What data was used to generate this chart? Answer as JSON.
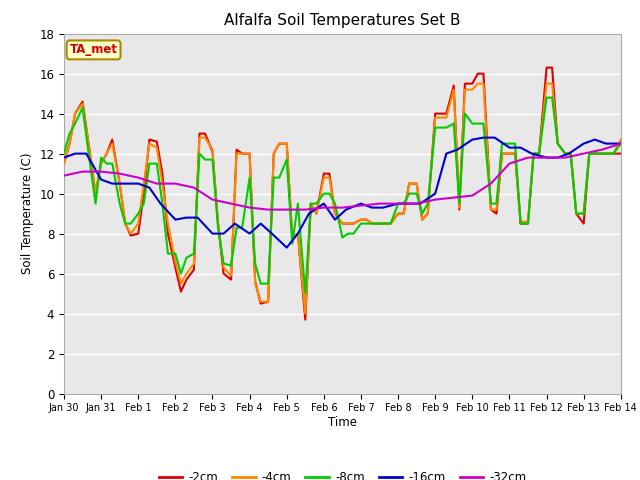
{
  "title": "Alfalfa Soil Temperatures Set B",
  "xlabel": "Time",
  "ylabel": "Soil Temperature (C)",
  "ylim": [
    0,
    18
  ],
  "xlim": [
    0,
    15
  ],
  "xtick_labels": [
    "Jan 30",
    "Jan 31",
    "Feb 1",
    "Feb 2",
    "Feb 3",
    "Feb 4",
    "Feb 5",
    "Feb 6",
    "Feb 7",
    "Feb 8",
    "Feb 9",
    "Feb 10",
    "Feb 11",
    "Feb 12",
    "Feb 13",
    "Feb 14"
  ],
  "xtick_positions": [
    0,
    1,
    2,
    3,
    4,
    5,
    6,
    7,
    8,
    9,
    10,
    11,
    12,
    13,
    14,
    15
  ],
  "fig_bg_color": "#ffffff",
  "plot_bg_color": "#e8e8e8",
  "annotation_text": "TA_met",
  "annotation_bg": "#ffffcc",
  "annotation_border": "#aa8800",
  "annotation_text_color": "#cc0000",
  "series": {
    "-2cm": {
      "color": "#dd0000",
      "x": [
        0,
        0.15,
        0.3,
        0.5,
        0.7,
        0.85,
        1.0,
        1.15,
        1.3,
        1.5,
        1.65,
        1.8,
        2.0,
        2.15,
        2.3,
        2.5,
        2.65,
        2.8,
        3.0,
        3.15,
        3.3,
        3.5,
        3.65,
        3.8,
        4.0,
        4.15,
        4.3,
        4.5,
        4.65,
        4.8,
        5.0,
        5.15,
        5.3,
        5.5,
        5.65,
        5.8,
        6.0,
        6.15,
        6.3,
        6.5,
        6.65,
        6.8,
        7.0,
        7.15,
        7.3,
        7.5,
        7.65,
        7.8,
        8.0,
        8.15,
        8.3,
        8.5,
        8.65,
        8.8,
        9.0,
        9.15,
        9.3,
        9.5,
        9.65,
        9.8,
        10.0,
        10.15,
        10.3,
        10.5,
        10.65,
        10.8,
        11.0,
        11.15,
        11.3,
        11.5,
        11.65,
        11.8,
        12.0,
        12.15,
        12.3,
        12.5,
        12.65,
        12.8,
        13.0,
        13.15,
        13.3,
        13.5,
        13.65,
        13.8,
        14.0,
        14.15,
        14.3,
        14.5,
        14.65,
        14.8,
        15.0
      ],
      "y": [
        11.5,
        12.5,
        14.0,
        14.6,
        12.0,
        10.0,
        11.5,
        12.0,
        12.7,
        10.5,
        8.5,
        7.9,
        8.0,
        10.0,
        12.7,
        12.6,
        11.0,
        8.0,
        6.3,
        5.1,
        5.7,
        6.2,
        13.0,
        13.0,
        12.1,
        8.5,
        6.0,
        5.7,
        12.2,
        12.0,
        12.0,
        5.6,
        4.5,
        4.6,
        12.0,
        12.5,
        12.5,
        7.8,
        8.0,
        3.7,
        9.5,
        9.0,
        11.0,
        11.0,
        9.0,
        8.5,
        8.5,
        8.5,
        8.7,
        8.7,
        8.5,
        8.5,
        8.5,
        8.5,
        9.0,
        9.0,
        10.5,
        10.5,
        8.7,
        9.0,
        14.0,
        14.0,
        14.0,
        15.4,
        9.2,
        15.5,
        15.5,
        16.0,
        16.0,
        9.2,
        9.0,
        12.0,
        12.0,
        12.0,
        8.5,
        8.5,
        12.0,
        12.0,
        16.3,
        16.3,
        12.5,
        12.0,
        12.0,
        9.0,
        8.5,
        12.0,
        12.0,
        12.0,
        12.0,
        12.0,
        12.0
      ]
    },
    "-4cm": {
      "color": "#ff8800",
      "x": [
        0,
        0.15,
        0.3,
        0.5,
        0.7,
        0.85,
        1.0,
        1.15,
        1.3,
        1.5,
        1.65,
        1.8,
        2.0,
        2.15,
        2.3,
        2.5,
        2.65,
        2.8,
        3.0,
        3.15,
        3.3,
        3.5,
        3.65,
        3.8,
        4.0,
        4.15,
        4.3,
        4.5,
        4.65,
        4.8,
        5.0,
        5.15,
        5.3,
        5.5,
        5.65,
        5.8,
        6.0,
        6.15,
        6.3,
        6.5,
        6.65,
        6.8,
        7.0,
        7.15,
        7.3,
        7.5,
        7.65,
        7.8,
        8.0,
        8.15,
        8.3,
        8.5,
        8.65,
        8.8,
        9.0,
        9.15,
        9.3,
        9.5,
        9.65,
        9.8,
        10.0,
        10.15,
        10.3,
        10.5,
        10.65,
        10.8,
        11.0,
        11.15,
        11.3,
        11.5,
        11.65,
        11.8,
        12.0,
        12.15,
        12.3,
        12.5,
        12.65,
        12.8,
        13.0,
        13.15,
        13.3,
        13.5,
        13.65,
        13.8,
        14.0,
        14.15,
        14.3,
        14.5,
        14.65,
        14.8,
        15.0
      ],
      "y": [
        11.5,
        12.5,
        14.0,
        14.5,
        12.0,
        10.0,
        11.5,
        12.0,
        12.5,
        10.5,
        8.5,
        8.0,
        8.5,
        10.5,
        12.5,
        12.3,
        10.5,
        8.5,
        6.6,
        5.5,
        6.0,
        6.5,
        12.8,
        12.8,
        12.2,
        8.5,
        6.3,
        5.9,
        12.0,
        12.0,
        12.0,
        5.5,
        4.6,
        4.6,
        12.0,
        12.5,
        12.5,
        7.8,
        8.0,
        4.0,
        9.5,
        9.0,
        10.8,
        10.8,
        9.0,
        8.5,
        8.5,
        8.5,
        8.7,
        8.7,
        8.5,
        8.5,
        8.5,
        8.5,
        9.0,
        9.0,
        10.5,
        10.5,
        8.7,
        9.0,
        13.8,
        13.8,
        13.8,
        15.2,
        9.3,
        15.2,
        15.2,
        15.5,
        15.5,
        9.2,
        9.2,
        12.0,
        12.0,
        12.0,
        8.6,
        8.6,
        12.0,
        12.0,
        15.5,
        15.5,
        12.5,
        12.0,
        12.0,
        9.0,
        9.0,
        12.0,
        12.0,
        12.0,
        12.0,
        12.0,
        12.7
      ]
    },
    "-8cm": {
      "color": "#00cc00",
      "x": [
        0,
        0.15,
        0.3,
        0.5,
        0.7,
        0.85,
        1.0,
        1.15,
        1.3,
        1.5,
        1.65,
        1.8,
        2.0,
        2.15,
        2.3,
        2.5,
        2.65,
        2.8,
        3.0,
        3.15,
        3.3,
        3.5,
        3.65,
        3.8,
        4.0,
        4.15,
        4.3,
        4.5,
        4.65,
        4.8,
        5.0,
        5.15,
        5.3,
        5.5,
        5.65,
        5.8,
        6.0,
        6.15,
        6.3,
        6.5,
        6.65,
        6.8,
        7.0,
        7.15,
        7.3,
        7.5,
        7.65,
        7.8,
        8.0,
        8.15,
        8.3,
        8.5,
        8.65,
        8.8,
        9.0,
        9.15,
        9.3,
        9.5,
        9.65,
        9.8,
        10.0,
        10.15,
        10.3,
        10.5,
        10.65,
        10.8,
        11.0,
        11.15,
        11.3,
        11.5,
        11.65,
        11.8,
        12.0,
        12.15,
        12.3,
        12.5,
        12.65,
        12.8,
        13.0,
        13.15,
        13.3,
        13.5,
        13.65,
        13.8,
        14.0,
        14.15,
        14.3,
        14.5,
        14.65,
        14.8,
        15.0
      ],
      "y": [
        12.0,
        13.0,
        13.5,
        14.3,
        11.5,
        9.5,
        11.8,
        11.5,
        11.5,
        9.5,
        8.5,
        8.5,
        9.0,
        9.5,
        11.5,
        11.5,
        9.5,
        7.0,
        7.0,
        6.0,
        6.8,
        7.0,
        12.0,
        11.7,
        11.7,
        8.3,
        6.5,
        6.4,
        8.3,
        8.3,
        10.8,
        6.5,
        5.5,
        5.5,
        10.8,
        10.8,
        11.7,
        7.5,
        9.5,
        5.0,
        9.5,
        9.5,
        10.0,
        10.0,
        9.5,
        7.8,
        8.0,
        8.0,
        8.5,
        8.5,
        8.5,
        8.5,
        8.5,
        8.5,
        9.5,
        9.5,
        10.0,
        10.0,
        9.0,
        9.5,
        13.3,
        13.3,
        13.3,
        13.5,
        9.5,
        14.0,
        13.5,
        13.5,
        13.5,
        9.5,
        9.5,
        12.5,
        12.5,
        12.5,
        8.5,
        8.5,
        12.0,
        12.0,
        14.8,
        14.8,
        12.5,
        12.0,
        12.0,
        9.0,
        9.0,
        12.0,
        12.0,
        12.0,
        12.0,
        12.0,
        12.5
      ]
    },
    "-16cm": {
      "color": "#0000cc",
      "x": [
        0,
        0.3,
        0.6,
        1.0,
        1.3,
        1.6,
        2.0,
        2.3,
        2.6,
        3.0,
        3.3,
        3.6,
        4.0,
        4.3,
        4.6,
        5.0,
        5.3,
        5.6,
        6.0,
        6.3,
        6.6,
        7.0,
        7.3,
        7.6,
        8.0,
        8.3,
        8.6,
        9.0,
        9.3,
        9.6,
        10.0,
        10.3,
        10.6,
        11.0,
        11.3,
        11.6,
        12.0,
        12.3,
        12.6,
        13.0,
        13.3,
        13.6,
        14.0,
        14.3,
        14.6,
        15.0
      ],
      "y": [
        11.8,
        12.0,
        12.0,
        10.7,
        10.5,
        10.5,
        10.5,
        10.3,
        9.5,
        8.7,
        8.8,
        8.8,
        8.0,
        8.0,
        8.5,
        8.0,
        8.5,
        8.0,
        7.3,
        8.0,
        9.0,
        9.5,
        8.7,
        9.2,
        9.5,
        9.3,
        9.3,
        9.5,
        9.5,
        9.5,
        10.0,
        12.0,
        12.2,
        12.7,
        12.8,
        12.8,
        12.3,
        12.3,
        12.0,
        11.8,
        11.8,
        12.0,
        12.5,
        12.7,
        12.5,
        12.5
      ]
    },
    "-32cm": {
      "color": "#cc00cc",
      "x": [
        0,
        0.5,
        1.0,
        1.5,
        2.0,
        2.5,
        3.0,
        3.5,
        4.0,
        4.5,
        5.0,
        5.5,
        6.0,
        6.5,
        7.0,
        7.5,
        8.0,
        8.5,
        9.0,
        9.5,
        10.0,
        10.5,
        11.0,
        11.5,
        12.0,
        12.5,
        13.0,
        13.5,
        14.0,
        14.5,
        15.0
      ],
      "y": [
        10.9,
        11.1,
        11.1,
        11.0,
        10.8,
        10.5,
        10.5,
        10.3,
        9.7,
        9.5,
        9.3,
        9.2,
        9.2,
        9.2,
        9.3,
        9.3,
        9.4,
        9.5,
        9.5,
        9.5,
        9.7,
        9.8,
        9.9,
        10.5,
        11.5,
        11.8,
        11.8,
        11.8,
        12.0,
        12.2,
        12.5
      ]
    }
  },
  "legend_entries": [
    "-2cm",
    "-4cm",
    "-8cm",
    "-16cm",
    "-32cm"
  ],
  "legend_colors": [
    "#dd0000",
    "#ff8800",
    "#00cc00",
    "#0000cc",
    "#cc00cc"
  ]
}
